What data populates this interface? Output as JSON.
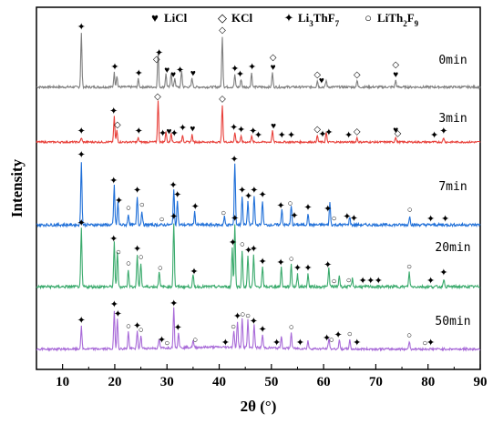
{
  "chart_data": {
    "type": "line",
    "xlabel": "2θ (°)",
    "ylabel": "Intensity",
    "xlim": [
      5,
      90
    ],
    "x_ticks": [
      "10",
      "20",
      "30",
      "40",
      "50",
      "60",
      "70",
      "80",
      "90"
    ],
    "legend": [
      {
        "symbol": "♥",
        "label": "LiCl"
      },
      {
        "symbol": "◇",
        "label": "KCl"
      },
      {
        "symbol": "✦",
        "label": "Li3ThF7"
      },
      {
        "symbol": "○",
        "label": "LiTh2F9"
      }
    ],
    "series": [
      {
        "name": "0min",
        "color": "#7f7f7f",
        "peaks": [
          [
            13.6,
            0.82
          ],
          [
            19.9,
            0.22
          ],
          [
            20.4,
            0.18
          ],
          [
            24.5,
            0.12
          ],
          [
            28.3,
            0.52
          ],
          [
            29.8,
            0.2
          ],
          [
            30.8,
            0.22
          ],
          [
            31.5,
            0.14
          ],
          [
            32.8,
            0.25
          ],
          [
            34.8,
            0.14
          ],
          [
            40.6,
            0.78
          ],
          [
            43.0,
            0.18
          ],
          [
            44.2,
            0.12
          ],
          [
            46.2,
            0.22
          ],
          [
            50.2,
            0.22
          ],
          [
            58.8,
            0.1
          ],
          [
            60.5,
            0.1
          ],
          [
            66.4,
            0.1
          ],
          [
            73.8,
            0.1
          ]
        ],
        "markers": [
          {
            "x": 13.6,
            "s": "✦"
          },
          {
            "x": 20.0,
            "s": "✦"
          },
          {
            "x": 24.6,
            "s": "✦"
          },
          {
            "x": 28.0,
            "s": "◇"
          },
          {
            "x": 28.5,
            "s": "✦"
          },
          {
            "x": 30.0,
            "s": "♥"
          },
          {
            "x": 31.2,
            "s": "♥"
          },
          {
            "x": 32.5,
            "s": "✦"
          },
          {
            "x": 35.0,
            "s": "♥"
          },
          {
            "x": 40.6,
            "s": "◇"
          },
          {
            "x": 43.0,
            "s": "✦"
          },
          {
            "x": 44.0,
            "s": "✦"
          },
          {
            "x": 46.3,
            "s": "✦"
          },
          {
            "x": 50.3,
            "s": "♥"
          },
          {
            "x": 50.3,
            "s": "◇"
          },
          {
            "x": 58.8,
            "s": "◇"
          },
          {
            "x": 59.6,
            "s": "♥"
          },
          {
            "x": 66.4,
            "s": "◇"
          },
          {
            "x": 73.8,
            "s": "♥"
          },
          {
            "x": 73.8,
            "s": "◇"
          }
        ]
      },
      {
        "name": "3min",
        "color": "#e8403a",
        "peaks": [
          [
            13.6,
            0.08
          ],
          [
            19.9,
            0.48
          ],
          [
            20.4,
            0.22
          ],
          [
            24.5,
            0.08
          ],
          [
            28.3,
            0.78
          ],
          [
            29.8,
            0.2
          ],
          [
            30.8,
            0.18
          ],
          [
            33.0,
            0.14
          ],
          [
            34.8,
            0.14
          ],
          [
            40.6,
            0.7
          ],
          [
            43.0,
            0.18
          ],
          [
            44.2,
            0.1
          ],
          [
            46.2,
            0.12
          ],
          [
            50.2,
            0.22
          ],
          [
            58.8,
            0.12
          ],
          [
            60.5,
            0.18
          ],
          [
            66.4,
            0.08
          ],
          [
            73.8,
            0.1
          ],
          [
            83.0,
            0.08
          ]
        ],
        "markers": [
          {
            "x": 13.6,
            "s": "✦"
          },
          {
            "x": 19.8,
            "s": "✦"
          },
          {
            "x": 20.5,
            "s": "◇"
          },
          {
            "x": 24.6,
            "s": "✦"
          },
          {
            "x": 28.2,
            "s": "◇"
          },
          {
            "x": 29.2,
            "s": "✦"
          },
          {
            "x": 30.4,
            "s": "♥"
          },
          {
            "x": 31.4,
            "s": "✦"
          },
          {
            "x": 33.0,
            "s": "✦"
          },
          {
            "x": 34.9,
            "s": "♥"
          },
          {
            "x": 40.6,
            "s": "◇"
          },
          {
            "x": 42.8,
            "s": "✦"
          },
          {
            "x": 44.2,
            "s": "✦"
          },
          {
            "x": 46.5,
            "s": "✦"
          },
          {
            "x": 47.5,
            "s": "✦"
          },
          {
            "x": 50.4,
            "s": "♥"
          },
          {
            "x": 52.0,
            "s": "✦"
          },
          {
            "x": 53.8,
            "s": "✦"
          },
          {
            "x": 58.8,
            "s": "◇"
          },
          {
            "x": 59.8,
            "s": "✦"
          },
          {
            "x": 61.0,
            "s": "✦"
          },
          {
            "x": 64.8,
            "s": "✦"
          },
          {
            "x": 66.4,
            "s": "◇"
          },
          {
            "x": 73.8,
            "s": "♥"
          },
          {
            "x": 74.2,
            "s": "◇"
          },
          {
            "x": 81.2,
            "s": "✦"
          },
          {
            "x": 83.0,
            "s": "✦"
          }
        ]
      },
      {
        "name": "7min",
        "color": "#1f6fd8",
        "peaks": [
          [
            13.6,
            0.8
          ],
          [
            19.9,
            0.5
          ],
          [
            20.6,
            0.28
          ],
          [
            22.6,
            0.14
          ],
          [
            24.3,
            0.36
          ],
          [
            25.2,
            0.18
          ],
          [
            31.3,
            0.44
          ],
          [
            32.0,
            0.3
          ],
          [
            35.3,
            0.16
          ],
          [
            41.0,
            0.1
          ],
          [
            43.0,
            0.78
          ],
          [
            44.4,
            0.36
          ],
          [
            45.5,
            0.3
          ],
          [
            46.7,
            0.36
          ],
          [
            48.3,
            0.3
          ],
          [
            52.0,
            0.2
          ],
          [
            53.8,
            0.24
          ],
          [
            57.0,
            0.14
          ],
          [
            61.2,
            0.28
          ],
          [
            65.0,
            0.1
          ],
          [
            76.5,
            0.12
          ]
        ],
        "markers": [
          {
            "x": 13.6,
            "s": "✦"
          },
          {
            "x": 19.8,
            "s": "✦"
          },
          {
            "x": 20.8,
            "s": "✦"
          },
          {
            "x": 22.6,
            "s": "○"
          },
          {
            "x": 24.3,
            "s": "✦"
          },
          {
            "x": 25.2,
            "s": "○"
          },
          {
            "x": 29.0,
            "s": "○"
          },
          {
            "x": 31.2,
            "s": "✦"
          },
          {
            "x": 32.0,
            "s": "✦"
          },
          {
            "x": 35.4,
            "s": "✦"
          },
          {
            "x": 40.8,
            "s": "○"
          },
          {
            "x": 42.9,
            "s": "✦"
          },
          {
            "x": 44.4,
            "s": "✦"
          },
          {
            "x": 45.6,
            "s": "✦"
          },
          {
            "x": 46.7,
            "s": "✦"
          },
          {
            "x": 48.3,
            "s": "✦"
          },
          {
            "x": 51.8,
            "s": "✦"
          },
          {
            "x": 53.6,
            "s": "○"
          },
          {
            "x": 54.4,
            "s": "✦"
          },
          {
            "x": 57.0,
            "s": "✦"
          },
          {
            "x": 60.8,
            "s": "✦"
          },
          {
            "x": 62.0,
            "s": "○"
          },
          {
            "x": 64.5,
            "s": "✦"
          },
          {
            "x": 65.8,
            "s": "✦"
          },
          {
            "x": 76.5,
            "s": "○"
          },
          {
            "x": 80.5,
            "s": "✦"
          },
          {
            "x": 83.3,
            "s": "✦"
          }
        ]
      },
      {
        "name": "20min",
        "color": "#3aaa6c",
        "peaks": [
          [
            13.6,
            0.72
          ],
          [
            19.9,
            0.55
          ],
          [
            20.5,
            0.44
          ],
          [
            22.6,
            0.22
          ],
          [
            24.3,
            0.4
          ],
          [
            25.0,
            0.3
          ],
          [
            28.5,
            0.2
          ],
          [
            31.3,
            0.8
          ],
          [
            35.0,
            0.14
          ],
          [
            42.5,
            0.5
          ],
          [
            43.0,
            0.78
          ],
          [
            44.4,
            0.46
          ],
          [
            45.5,
            0.4
          ],
          [
            46.6,
            0.4
          ],
          [
            48.3,
            0.24
          ],
          [
            51.9,
            0.24
          ],
          [
            53.8,
            0.28
          ],
          [
            55.0,
            0.16
          ],
          [
            57.0,
            0.16
          ],
          [
            61.0,
            0.24
          ],
          [
            63.0,
            0.14
          ],
          [
            65.5,
            0.1
          ],
          [
            76.4,
            0.18
          ],
          [
            83.0,
            0.1
          ]
        ],
        "markers": [
          {
            "x": 13.6,
            "s": "✦"
          },
          {
            "x": 19.8,
            "s": "✦"
          },
          {
            "x": 20.7,
            "s": "○"
          },
          {
            "x": 22.6,
            "s": "○"
          },
          {
            "x": 24.3,
            "s": "✦"
          },
          {
            "x": 25.0,
            "s": "○"
          },
          {
            "x": 28.7,
            "s": "○"
          },
          {
            "x": 31.3,
            "s": "✦"
          },
          {
            "x": 35.2,
            "s": "✦"
          },
          {
            "x": 42.6,
            "s": "✦"
          },
          {
            "x": 43.0,
            "s": "✦"
          },
          {
            "x": 44.4,
            "s": "○"
          },
          {
            "x": 45.6,
            "s": "✦"
          },
          {
            "x": 46.6,
            "s": "✦"
          },
          {
            "x": 48.3,
            "s": "✦"
          },
          {
            "x": 51.8,
            "s": "✦"
          },
          {
            "x": 53.8,
            "s": "○"
          },
          {
            "x": 55.0,
            "s": "✦"
          },
          {
            "x": 57.0,
            "s": "✦"
          },
          {
            "x": 60.8,
            "s": "✦"
          },
          {
            "x": 62.0,
            "s": "○"
          },
          {
            "x": 64.8,
            "s": "○"
          },
          {
            "x": 67.5,
            "s": "✦"
          },
          {
            "x": 69.0,
            "s": "✦"
          },
          {
            "x": 70.5,
            "s": "✦"
          },
          {
            "x": 76.4,
            "s": "○"
          },
          {
            "x": 80.5,
            "s": "✦"
          },
          {
            "x": 83.0,
            "s": "✦"
          }
        ]
      },
      {
        "name": "50min",
        "color": "#a86ad8",
        "peaks": [
          [
            13.6,
            0.34
          ],
          [
            19.9,
            0.58
          ],
          [
            20.5,
            0.46
          ],
          [
            22.6,
            0.26
          ],
          [
            24.3,
            0.26
          ],
          [
            25.0,
            0.2
          ],
          [
            28.5,
            0.14
          ],
          [
            31.3,
            0.6
          ],
          [
            32.2,
            0.24
          ],
          [
            35.0,
            0.1
          ],
          [
            42.8,
            0.26
          ],
          [
            43.5,
            0.4
          ],
          [
            44.4,
            0.46
          ],
          [
            45.5,
            0.42
          ],
          [
            46.7,
            0.34
          ],
          [
            48.3,
            0.2
          ],
          [
            51.9,
            0.18
          ],
          [
            53.8,
            0.24
          ],
          [
            57.0,
            0.12
          ],
          [
            61.0,
            0.16
          ],
          [
            63.0,
            0.14
          ],
          [
            65.0,
            0.14
          ],
          [
            76.4,
            0.12
          ]
        ],
        "markers": [
          {
            "x": 13.6,
            "s": "✦"
          },
          {
            "x": 19.9,
            "s": "✦"
          },
          {
            "x": 20.6,
            "s": "✦"
          },
          {
            "x": 22.6,
            "s": "○"
          },
          {
            "x": 24.3,
            "s": "✦"
          },
          {
            "x": 25.0,
            "s": "○"
          },
          {
            "x": 29.0,
            "s": "✦"
          },
          {
            "x": 30.0,
            "s": "○"
          },
          {
            "x": 31.3,
            "s": "✦"
          },
          {
            "x": 32.1,
            "s": "✦"
          },
          {
            "x": 35.4,
            "s": "○"
          },
          {
            "x": 41.2,
            "s": "✦"
          },
          {
            "x": 42.7,
            "s": "○"
          },
          {
            "x": 43.5,
            "s": "✦"
          },
          {
            "x": 44.5,
            "s": "○"
          },
          {
            "x": 45.5,
            "s": "○"
          },
          {
            "x": 46.6,
            "s": "✦"
          },
          {
            "x": 48.3,
            "s": "✦"
          },
          {
            "x": 51.0,
            "s": "✦"
          },
          {
            "x": 53.8,
            "s": "○"
          },
          {
            "x": 55.5,
            "s": "✦"
          },
          {
            "x": 60.6,
            "s": "✦"
          },
          {
            "x": 61.5,
            "s": "○"
          },
          {
            "x": 62.8,
            "s": "✦"
          },
          {
            "x": 65.0,
            "s": "○"
          },
          {
            "x": 66.4,
            "s": "✦"
          },
          {
            "x": 76.4,
            "s": "○"
          },
          {
            "x": 79.4,
            "s": "○"
          },
          {
            "x": 80.5,
            "s": "✦"
          }
        ]
      }
    ]
  }
}
